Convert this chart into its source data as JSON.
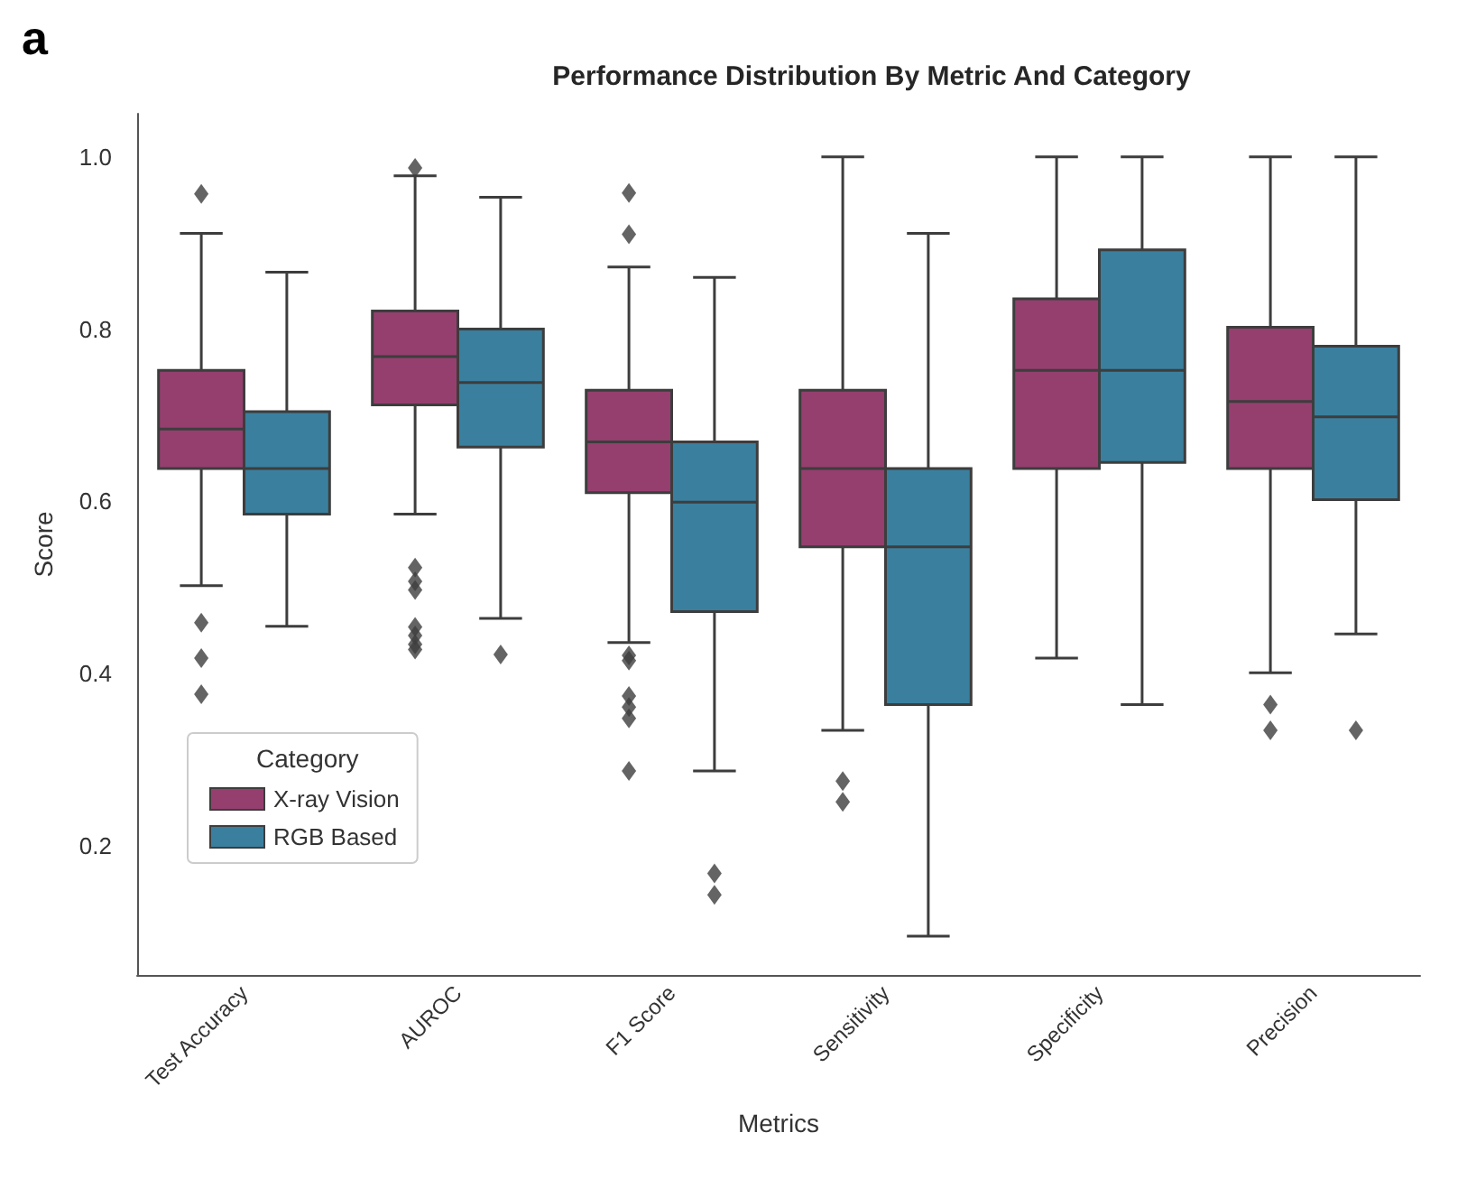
{
  "chart_data": {
    "type": "box",
    "title": "Performance Distribution By Metric And Category",
    "xlabel": "Metrics",
    "ylabel": "Score",
    "legend_title": "Category",
    "annotations": [
      "a"
    ],
    "categories": [
      "Test Accuracy",
      "AUROC",
      "F1 Score",
      "Sensitivity",
      "Specificity",
      "Precision"
    ],
    "ylim": [
      0.05,
      1.05
    ],
    "yticks": [
      0.2,
      0.4,
      0.6,
      0.8,
      {
        "value": 1,
        "label": "1.0"
      }
    ],
    "legend": "bottom left",
    "marker": "diamond",
    "series": [
      {
        "name": "X-ray Vision",
        "color": "#953f6f",
        "boxes": [
          {
            "low": 0.502,
            "q1": 0.638,
            "median": 0.684,
            "q3": 0.752,
            "high": 0.911,
            "outliers": [
              0.957,
              0.459,
              0.418,
              0.376
            ]
          },
          {
            "low": 0.585,
            "q1": 0.712,
            "median": 0.768,
            "q3": 0.821,
            "high": 0.978,
            "outliers": [
              0.987,
              0.523,
              0.507,
              0.497,
              0.454,
              0.444,
              0.434,
              0.428
            ]
          },
          {
            "low": 0.436,
            "q1": 0.61,
            "median": 0.669,
            "q3": 0.729,
            "high": 0.872,
            "outliers": [
              0.958,
              0.91,
              0.421,
              0.415,
              0.374,
              0.361,
              0.348,
              0.287
            ]
          },
          {
            "low": 0.334,
            "q1": 0.547,
            "median": 0.638,
            "q3": 0.729,
            "high": 1.0,
            "outliers": [
              0.275,
              0.251
            ]
          },
          {
            "low": 0.418,
            "q1": 0.638,
            "median": 0.752,
            "q3": 0.835,
            "high": 1.0
          },
          {
            "low": 0.401,
            "q1": 0.638,
            "median": 0.716,
            "q3": 0.802,
            "high": 1.0,
            "outliers": [
              0.364,
              0.334
            ]
          }
        ]
      },
      {
        "name": "RGB Based",
        "color": "#3a7f9e",
        "boxes": [
          {
            "low": 0.455,
            "q1": 0.585,
            "median": 0.638,
            "q3": 0.704,
            "high": 0.866
          },
          {
            "low": 0.464,
            "q1": 0.663,
            "median": 0.738,
            "q3": 0.8,
            "high": 0.953,
            "outliers": [
              0.422
            ]
          },
          {
            "low": 0.287,
            "q1": 0.472,
            "median": 0.599,
            "q3": 0.669,
            "high": 0.86,
            "outliers": [
              0.168,
              0.143
            ]
          },
          {
            "low": 0.095,
            "q1": 0.364,
            "median": 0.547,
            "q3": 0.638,
            "high": 0.911
          },
          {
            "low": 0.364,
            "q1": 0.645,
            "median": 0.752,
            "q3": 0.892,
            "high": 1.0
          },
          {
            "low": 0.446,
            "q1": 0.602,
            "median": 0.698,
            "q3": 0.78,
            "high": 1.0,
            "outliers": [
              0.334
            ]
          }
        ]
      }
    ]
  }
}
